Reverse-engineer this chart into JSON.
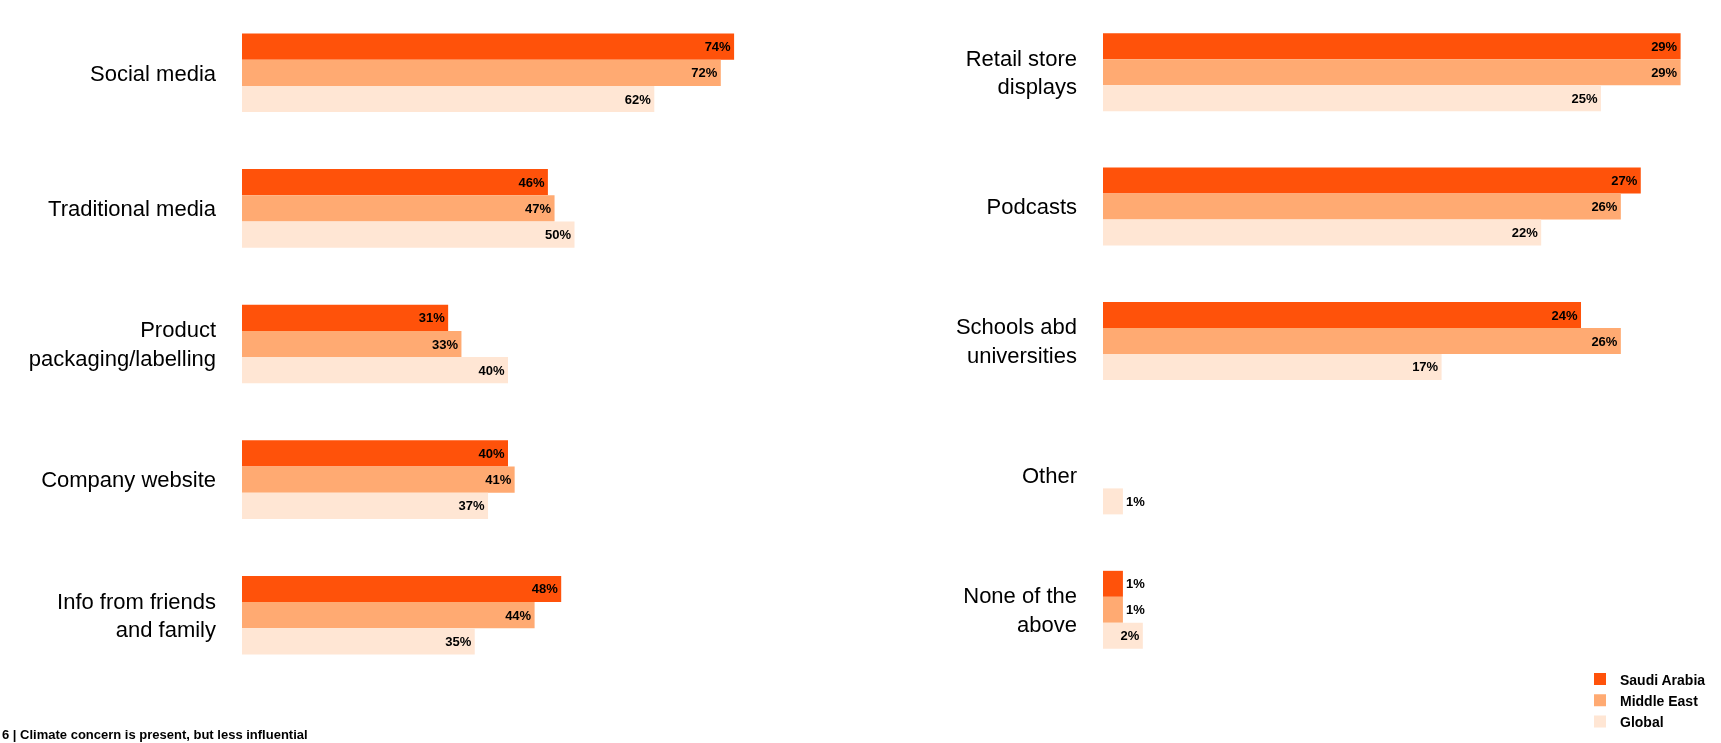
{
  "chart_data": [
    {
      "type": "bar",
      "orientation": "horizontal",
      "legend": false,
      "categories": [
        "Social media",
        "Traditional media",
        "Product packaging/labelling",
        "Company website",
        "Info from friends and family"
      ],
      "series": [
        {
          "color": "#ff520a",
          "values": [
            74,
            46,
            31,
            40,
            48
          ],
          "value_labels": [
            "74%",
            "46%",
            "31%",
            "40%",
            "48%"
          ]
        },
        {
          "color": "#ffaa72",
          "values": [
            72,
            47,
            33,
            41,
            44
          ],
          "value_labels": [
            "72%",
            "47%",
            "33%",
            "41%",
            "44%"
          ]
        },
        {
          "color": "#ffe6d4",
          "values": [
            62,
            50,
            40,
            37,
            35
          ],
          "value_labels": [
            "62%",
            "50%",
            "40%",
            "37%",
            "35%"
          ]
        }
      ],
      "annotations": [
        "6 | Climate concern is present, but less influential"
      ]
    },
    {
      "type": "bar",
      "orientation": "horizontal",
      "legend": "bottom right",
      "categories": [
        "Retail store displays",
        "Podcasts",
        "Schools abd universities",
        "Other",
        "None of the above"
      ],
      "series": [
        {
          "name": "Saudi Arabia",
          "color": "#ff520a",
          "values": [
            29,
            27,
            24,
            null,
            1
          ],
          "value_labels": [
            "29%",
            "27%",
            "24%",
            null,
            "1%"
          ]
        },
        {
          "name": "Middle East",
          "color": "#ffaa72",
          "values": [
            29,
            26,
            26,
            null,
            1
          ],
          "value_labels": [
            "29%",
            "26%",
            "26%",
            null,
            "1%"
          ]
        },
        {
          "name": "Global",
          "color": "#ffe6d4",
          "values": [
            25,
            22,
            17,
            1,
            2
          ],
          "value_labels": [
            "25%",
            "22%",
            "17%",
            "1%",
            "2%"
          ]
        }
      ]
    }
  ]
}
